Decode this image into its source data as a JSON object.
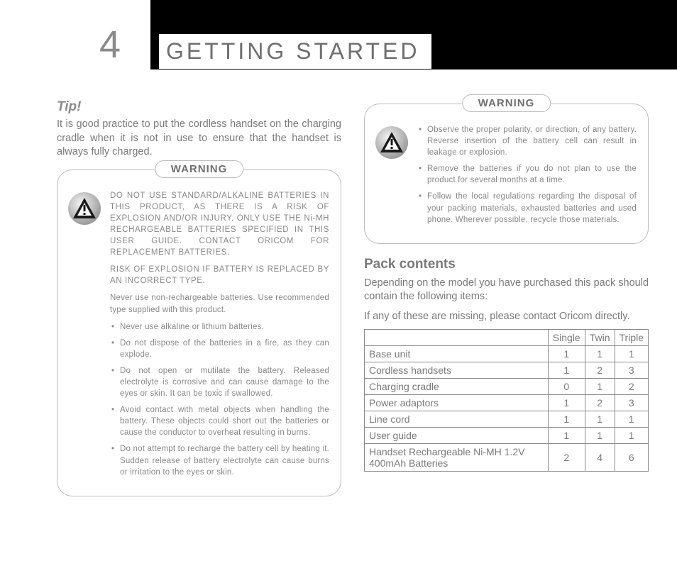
{
  "page_number": "4",
  "section_title": "GETTING STARTED",
  "tip": {
    "heading": "Tip!",
    "text": "It is good practice to put the cordless handset on the charging cradle when it is not in use to ensure that the handset is always fully charged."
  },
  "warning1": {
    "label": "WARNING",
    "paragraphs": [
      "DO NOT USE STANDARD/ALKALINE BATTERIES IN THIS PRODUCT, AS THERE IS A RISK OF EXPLOSION AND/OR INJURY. ONLY USE THE Ni-MH RECHARGEABLE BATTERIES SPECIFIED IN THIS USER GUIDE. CONTACT ORICOM FOR REPLACEMENT BATTERIES.",
      "RISK OF EXPLOSION IF BATTERY IS REPLACED BY AN INCORRECT TYPE.",
      "Never use non-rechargeable batteries. Use recommended type supplied with this product."
    ],
    "bullets": [
      "Never use alkaline or lithium batteries.",
      "Do not dispose of the batteries in a fire, as they can explode.",
      "Do not open or mutilate the battery. Released electrolyte is corrosive and can cause damage to the eyes or skin. It can be toxic if swallowed.",
      "Avoid contact with metal objects when handling the battery. These objects could short out the batteries or cause the conductor to overheat resulting in burns.",
      "Do not attempt to recharge the battery cell by heating it. Sudden release of battery electrolyte can cause burns or irritation to the eyes or skin."
    ]
  },
  "warning2": {
    "label": "WARNING",
    "bullets": [
      "Observe the proper polarity, or direction, of any battery. Reverse insertion of the battery cell can result in leakage or explosion.",
      "Remove the batteries if you do not plan to use the product for several months at a time.",
      "Follow the local regulations regarding the disposal of your packing materials, exhausted batteries and used phone. Wherever possible, recycle those materials."
    ]
  },
  "pack": {
    "heading": "Pack contents",
    "text1": "Depending on the model you have purchased this pack should contain the following items:",
    "text2": "If any of these are missing, please contact Oricom directly.",
    "columns": [
      "Single",
      "Twin",
      "Triple"
    ],
    "rows": [
      {
        "label": "Base unit",
        "vals": [
          "1",
          "1",
          "1"
        ]
      },
      {
        "label": "Cordless handsets",
        "vals": [
          "1",
          "2",
          "3"
        ]
      },
      {
        "label": "Charging cradle",
        "vals": [
          "0",
          "1",
          "2"
        ]
      },
      {
        "label": "Power adaptors",
        "vals": [
          "1",
          "2",
          "3"
        ]
      },
      {
        "label": "Line cord",
        "vals": [
          "1",
          "1",
          "1"
        ]
      },
      {
        "label": "User guide",
        "vals": [
          "1",
          "1",
          "1"
        ]
      },
      {
        "label": "Handset Rechargeable Ni-MH 1.2V 400mAh Batteries",
        "vals": [
          "2",
          "4",
          "6"
        ]
      }
    ]
  },
  "colors": {
    "text_gray": "#7a7a7a",
    "border_gray": "#bcbcbc",
    "black": "#000000"
  }
}
